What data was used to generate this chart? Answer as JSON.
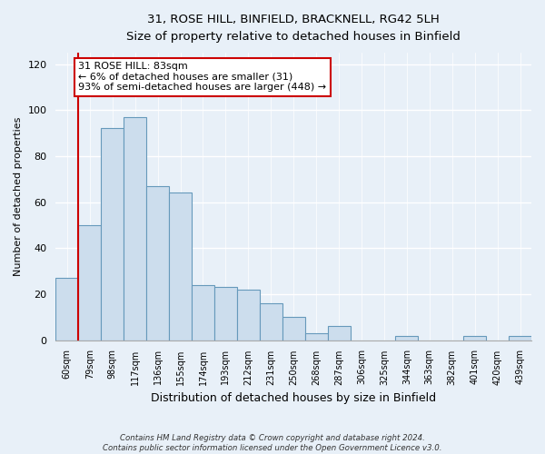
{
  "title": "31, ROSE HILL, BINFIELD, BRACKNELL, RG42 5LH",
  "subtitle": "Size of property relative to detached houses in Binfield",
  "xlabel": "Distribution of detached houses by size in Binfield",
  "ylabel": "Number of detached properties",
  "bar_labels": [
    "60sqm",
    "79sqm",
    "98sqm",
    "117sqm",
    "136sqm",
    "155sqm",
    "174sqm",
    "193sqm",
    "212sqm",
    "231sqm",
    "250sqm",
    "268sqm",
    "287sqm",
    "306sqm",
    "325sqm",
    "344sqm",
    "363sqm",
    "382sqm",
    "401sqm",
    "420sqm",
    "439sqm"
  ],
  "bar_values": [
    27,
    50,
    92,
    97,
    67,
    64,
    24,
    23,
    22,
    16,
    10,
    3,
    6,
    0,
    0,
    2,
    0,
    0,
    2,
    0,
    2
  ],
  "bar_color": "#ccdded",
  "bar_edge_color": "#6699bb",
  "marker_line_color": "#cc0000",
  "annotation_line1": "31 ROSE HILL: 83sqm",
  "annotation_line2": "← 6% of detached houses are smaller (31)",
  "annotation_line3": "93% of semi-detached houses are larger (448) →",
  "annotation_box_color": "#ffffff",
  "annotation_box_edge_color": "#cc0000",
  "ylim": [
    0,
    125
  ],
  "yticks": [
    0,
    20,
    40,
    60,
    80,
    100,
    120
  ],
  "footer_line1": "Contains HM Land Registry data © Crown copyright and database right 2024.",
  "footer_line2": "Contains public sector information licensed under the Open Government Licence v3.0.",
  "background_color": "#e8f0f8",
  "grid_color": "#ffffff"
}
